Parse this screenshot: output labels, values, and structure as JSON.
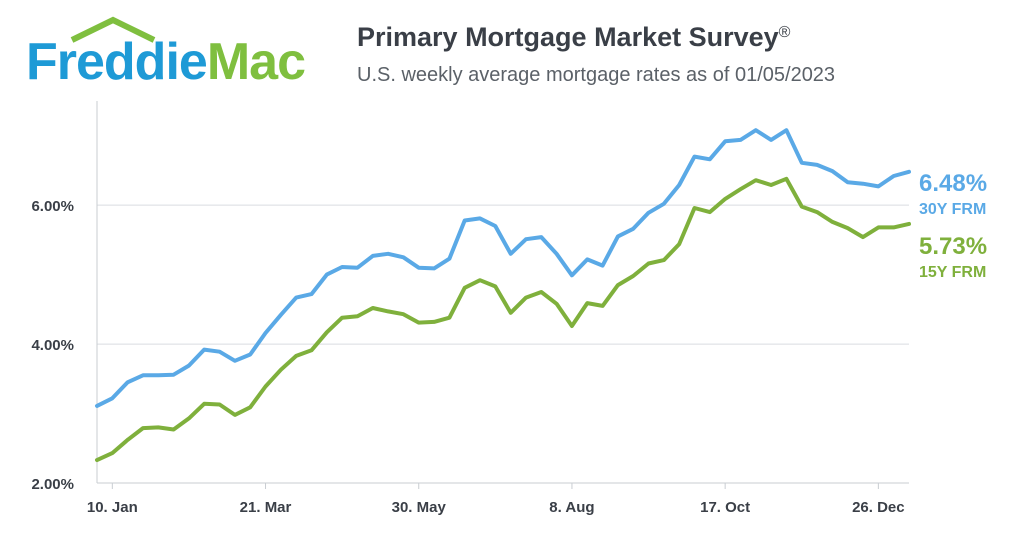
{
  "logo": {
    "text": "FreddieMac"
  },
  "header": {
    "title": "Primary Mortgage Market Survey",
    "registered_mark": "®",
    "subtitle": "U.S. weekly average mortgage rates as of 01/05/2023"
  },
  "colors": {
    "series_30y": "#5aa9e6",
    "series_15y": "#7fb03c",
    "logo_blue": "#1e9ad6",
    "logo_green": "#7fbf3f",
    "grid": "#d9dce0",
    "axis_text": "#3a3f47"
  },
  "chart_data": {
    "type": "line",
    "ylim": [
      2.0,
      7.5
    ],
    "yticks": [
      2.0,
      4.0,
      6.0
    ],
    "ytick_labels": [
      "2.00%",
      "4.00%",
      "6.00%"
    ],
    "xtick_labels": [
      "10. Jan",
      "21. Mar",
      "30. May",
      "8. Aug",
      "17. Oct",
      "26. Dec"
    ],
    "xtick_week_index": [
      1,
      11,
      21,
      31,
      41,
      51
    ],
    "grid": true,
    "series": [
      {
        "name": "30Y FRM",
        "end_label": "6.48%",
        "values": [
          3.11,
          3.22,
          3.45,
          3.55,
          3.55,
          3.56,
          3.69,
          3.92,
          3.89,
          3.76,
          3.85,
          4.16,
          4.42,
          4.67,
          4.72,
          5.0,
          5.11,
          5.1,
          5.27,
          5.3,
          5.25,
          5.1,
          5.09,
          5.23,
          5.78,
          5.81,
          5.7,
          5.3,
          5.51,
          5.54,
          5.3,
          4.99,
          5.22,
          5.13,
          5.55,
          5.66,
          5.89,
          6.02,
          6.29,
          6.7,
          6.66,
          6.92,
          6.94,
          7.08,
          6.94,
          7.08,
          6.61,
          6.58,
          6.49,
          6.33,
          6.31,
          6.27,
          6.42,
          6.48
        ]
      },
      {
        "name": "15Y FRM",
        "end_label": "5.73%",
        "values": [
          2.33,
          2.43,
          2.62,
          2.79,
          2.8,
          2.77,
          2.93,
          3.14,
          3.13,
          2.98,
          3.09,
          3.39,
          3.63,
          3.83,
          3.91,
          4.17,
          4.38,
          4.4,
          4.52,
          4.47,
          4.43,
          4.31,
          4.32,
          4.38,
          4.81,
          4.92,
          4.83,
          4.45,
          4.67,
          4.75,
          4.58,
          4.26,
          4.59,
          4.55,
          4.85,
          4.98,
          5.16,
          5.21,
          5.44,
          5.96,
          5.9,
          6.09,
          6.23,
          6.36,
          6.29,
          6.38,
          5.98,
          5.9,
          5.76,
          5.67,
          5.54,
          5.68,
          5.68,
          5.73
        ]
      }
    ]
  }
}
